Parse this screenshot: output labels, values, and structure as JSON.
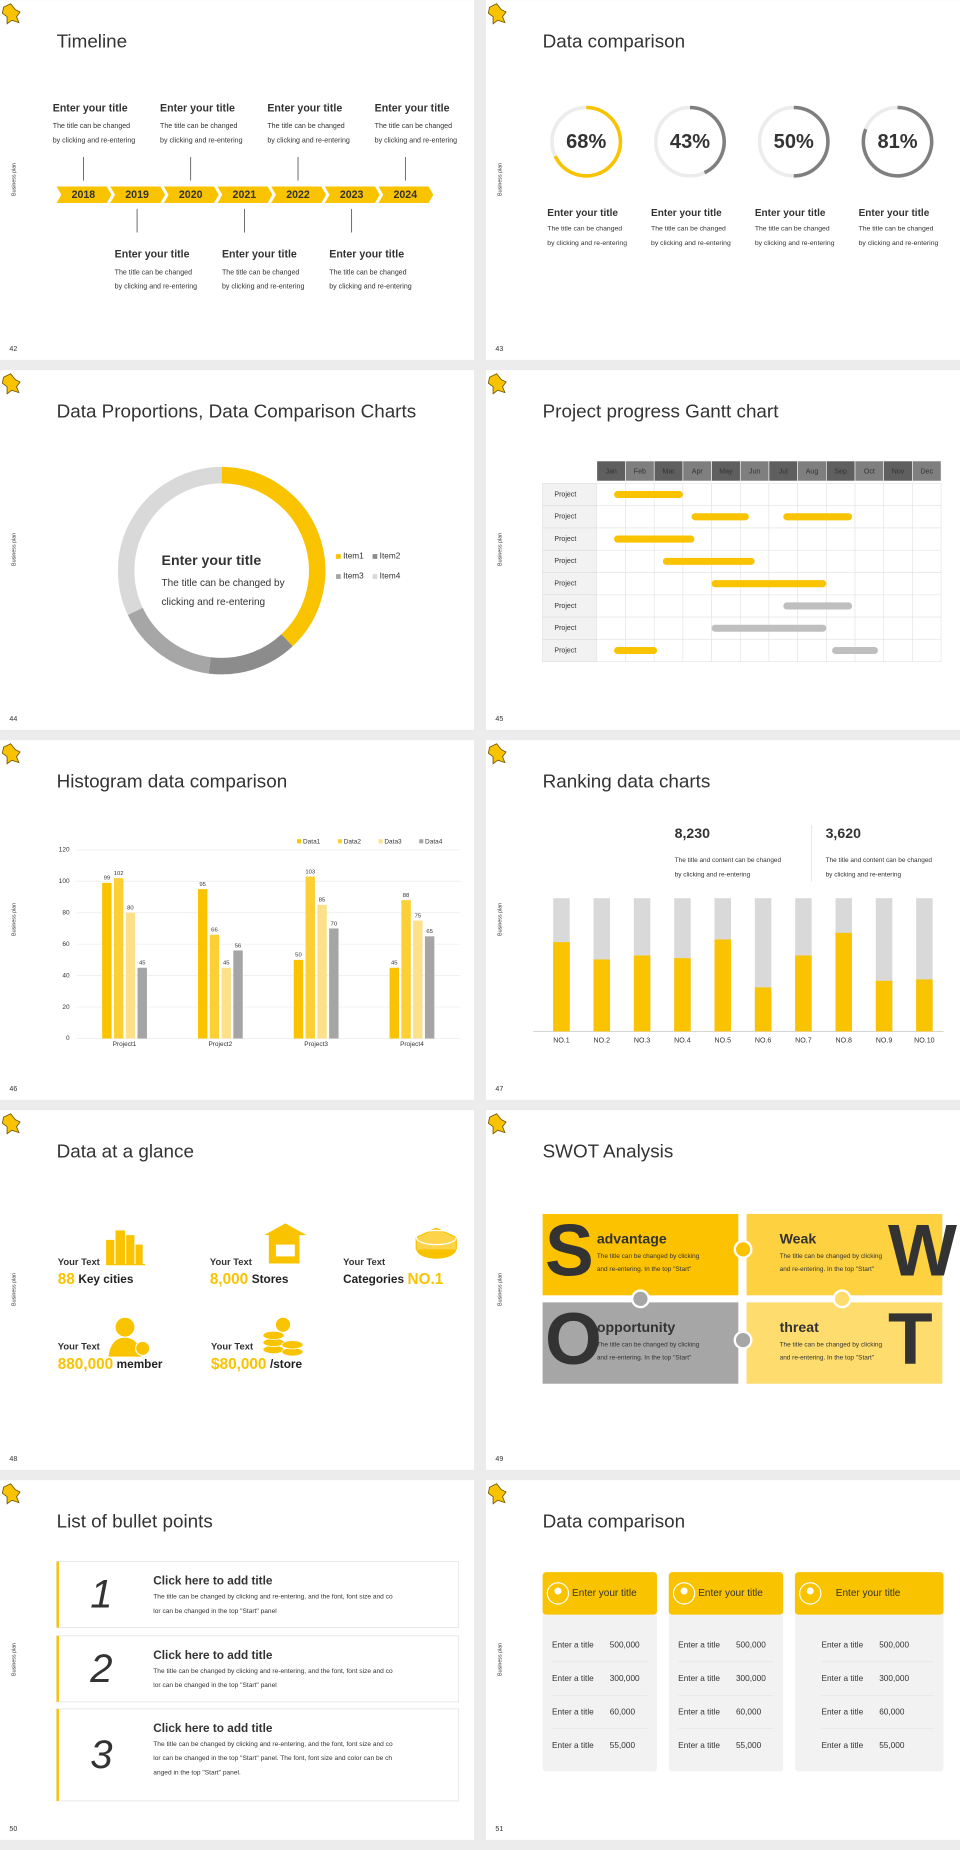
{
  "slides": [
    {
      "number": "42",
      "side_label": "Business plan",
      "title": "Timeline",
      "years": [
        {
          "year": "2018",
          "title": "Enter your title",
          "desc": [
            "The title can be changed",
            "by clicking and re-entering"
          ]
        },
        {
          "year": "2019",
          "title": "Enter your title",
          "desc": [
            "The title can be changed",
            "by clicking and re-entering"
          ]
        },
        {
          "year": "2020",
          "title": "Enter your title",
          "desc": [
            "The title can be changed",
            "by clicking and re-entering"
          ]
        },
        {
          "year": "2021",
          "title": "Enter your title",
          "desc": [
            "The title can be changed",
            "by clicking and re-entering"
          ]
        },
        {
          "year": "2022",
          "title": "Enter your title",
          "desc": [
            "The title can be changed",
            "by clicking and re-entering"
          ]
        },
        {
          "year": "2023",
          "title": "Enter your title",
          "desc": [
            "The title can be changed",
            "by clicking and re-entering"
          ]
        },
        {
          "year": "2024",
          "title": "Enter your title",
          "desc": [
            "The title can be changed",
            "by clicking and re-entering"
          ]
        }
      ]
    },
    {
      "number": "43",
      "side_label": "Business plan",
      "title": "Data comparison",
      "items": [
        {
          "value": 68,
          "value_label": "68%",
          "color": "#f9c300",
          "title": "Enter your title",
          "desc": [
            "The title can be changed",
            "by clicking and re-entering"
          ]
        },
        {
          "value": 43,
          "value_label": "43%",
          "color": "#7f7f7f",
          "title": "Enter your title",
          "desc": [
            "The title can be changed",
            "by clicking and re-entering"
          ]
        },
        {
          "value": 50,
          "value_label": "50%",
          "color": "#7f7f7f",
          "title": "Enter your title",
          "desc": [
            "The title can be changed",
            "by clicking and re-entering"
          ]
        },
        {
          "value": 81,
          "value_label": "81%",
          "color": "#7f7f7f",
          "title": "Enter your title",
          "desc": [
            "The title can be changed",
            "by clicking and re-entering"
          ]
        }
      ]
    },
    {
      "number": "44",
      "side_label": "Business plan",
      "title": "Data Proportions, Data Comparison Charts",
      "chart": {
        "type": "donut",
        "center_title": "Enter your title",
        "center_desc": [
          "The title can be changed by",
          "clicking and re-entering"
        ],
        "categories": [
          "Item1",
          "Item2",
          "Item3",
          "Item4"
        ],
        "values": [
          38,
          14,
          16,
          32
        ],
        "colors": [
          "#f9c300",
          "#8c8c8c",
          "#a6a6a6",
          "#d9d9d9"
        ]
      }
    },
    {
      "number": "45",
      "side_label": "Business plan",
      "title": "Project progress Gantt chart",
      "months": [
        "Jan",
        "Feb",
        "Mar",
        "Apr",
        "May",
        "Jun",
        "Jul",
        "Aug",
        "Sep",
        "Oct",
        "Nov",
        "Dec"
      ],
      "rows": [
        {
          "label": "Project",
          "bars": [
            {
              "start": 0.6,
              "end": 3,
              "color": "#f9c300"
            }
          ]
        },
        {
          "label": "Project",
          "bars": [
            {
              "start": 3.3,
              "end": 5.3,
              "color": "#f9c300"
            },
            {
              "start": 6.5,
              "end": 8.9,
              "color": "#f9c300"
            }
          ]
        },
        {
          "label": "Project",
          "bars": [
            {
              "start": 0.6,
              "end": 3.4,
              "color": "#f9c300"
            }
          ]
        },
        {
          "label": "Project",
          "bars": [
            {
              "start": 2.3,
              "end": 5.5,
              "color": "#f9c300"
            }
          ]
        },
        {
          "label": "Project",
          "bars": [
            {
              "start": 4,
              "end": 8,
              "color": "#f9c300"
            }
          ]
        },
        {
          "label": "Project",
          "bars": [
            {
              "start": 6.5,
              "end": 8.9,
              "color": "#bfbfbf"
            }
          ]
        },
        {
          "label": "Project",
          "bars": [
            {
              "start": 4,
              "end": 8,
              "color": "#bfbfbf"
            }
          ]
        },
        {
          "label": "Project",
          "bars": [
            {
              "start": 0.6,
              "end": 2.1,
              "color": "#f9c300"
            },
            {
              "start": 8.2,
              "end": 9.8,
              "color": "#bfbfbf"
            }
          ]
        }
      ]
    },
    {
      "number": "46",
      "side_label": "Business plan",
      "title": "Histogram data comparison",
      "chart": {
        "type": "bar",
        "categories": [
          "Project1",
          "Project2",
          "Project3",
          "Project4"
        ],
        "series": [
          {
            "name": "Data1",
            "color": "#f9c300",
            "values": [
              99,
              95,
              50,
              45
            ]
          },
          {
            "name": "Data2",
            "color": "#fcd034",
            "values": [
              102,
              66,
              103,
              88
            ]
          },
          {
            "name": "Data3",
            "color": "#fde18a",
            "values": [
              80,
              45,
              85,
              75
            ]
          },
          {
            "name": "Data4",
            "color": "#a5a5a5",
            "values": [
              45,
              56,
              70,
              65
            ]
          }
        ],
        "ylim": [
          0,
          120
        ],
        "yticks": [
          0,
          20,
          40,
          60,
          80,
          100,
          120
        ],
        "grid": true
      }
    },
    {
      "number": "47",
      "side_label": "Business plan",
      "title": "Ranking data charts",
      "highlights": [
        {
          "value": "8,230",
          "color": "#f9c300",
          "desc": [
            "The title and content can be changed",
            "by clicking and re-entering"
          ]
        },
        {
          "value": "3,620",
          "color": "#a6a6a6",
          "desc": [
            "The title and content can be changed",
            "by clicking and re-entering"
          ]
        }
      ],
      "chart": {
        "type": "bar",
        "categories": [
          "NO.1",
          "NO.2",
          "NO.3",
          "NO.4",
          "NO.5",
          "NO.6",
          "NO.7",
          "NO.8",
          "NO.9",
          "NO.10"
        ],
        "values": [
          67,
          54,
          57,
          55,
          69,
          33,
          57,
          74,
          38,
          39
        ],
        "ylim": [
          0,
          100
        ],
        "color": "#f9c300",
        "track_color": "#d9d9d9"
      }
    },
    {
      "number": "48",
      "side_label": "Business plan",
      "title": "Data at a glance",
      "items": [
        {
          "label": "Your Text",
          "parts": [
            "88",
            "Key cities"
          ],
          "highlight": 0
        },
        {
          "label": "Your Text",
          "parts": [
            "8,000",
            "Stores"
          ],
          "highlight": 0
        },
        {
          "label": "Your Text",
          "parts": [
            "Categories",
            "NO.1"
          ],
          "highlight": 1
        },
        {
          "label": "Your Text",
          "parts": [
            "880,000",
            "member"
          ],
          "highlight": 0
        },
        {
          "label": "Your Text",
          "parts": [
            "$80,000",
            "/store"
          ],
          "highlight": 0
        }
      ]
    },
    {
      "number": "49",
      "side_label": "Business plan",
      "title": "SWOT Analysis",
      "quadrants": [
        {
          "letter": "S",
          "title": "advantage",
          "color": "#fcc200",
          "desc": [
            "The title can be changed by clicking",
            "and re-entering. In the top \"Start\""
          ]
        },
        {
          "letter": "W",
          "title": "Weak",
          "color": "#fdd140",
          "desc": [
            "The title can be changed by clicking",
            "and re-entering. In the top \"Start\""
          ]
        },
        {
          "letter": "O",
          "title": "opportunity",
          "color": "#a6a6a6",
          "desc": [
            "The title can be changed by clicking",
            "and re-entering. In the top \"Start\""
          ]
        },
        {
          "letter": "T",
          "title": "threat",
          "color": "#fedd6e",
          "desc": [
            "The title can be changed by clicking",
            "and re-entering. In the top \"Start\""
          ]
        }
      ]
    },
    {
      "number": "50",
      "side_label": "Business plan",
      "title": "List of bullet points",
      "items": [
        {
          "numeral": "1",
          "title": "Click here to add title",
          "desc": [
            "The title can be changed by clicking and re-entering, and the font, font size and co",
            "lor can be changed in the top \"Start\" panel"
          ]
        },
        {
          "numeral": "2",
          "title": "Click here to add title",
          "desc": [
            "The title can be changed by clicking and re-entering, and the font, font size and co",
            "lor can be changed in the top \"Start\" panel"
          ]
        },
        {
          "numeral": "3",
          "title": "Click here to add title",
          "desc": [
            "The title can be changed by clicking and re-entering, and the font, font size and co",
            "lor can be changed in the top \"Start\" panel. The font, font size and color can be ch",
            "anged in the top \"Start\" panel."
          ]
        }
      ]
    },
    {
      "number": "51",
      "side_label": "Business plan",
      "title": "Data comparison",
      "cards": [
        {
          "title": "Enter your title",
          "rows": [
            {
              "label": "Enter a title",
              "value": "500,000"
            },
            {
              "label": "Enter a title",
              "value": "300,000"
            },
            {
              "label": "Enter a title",
              "value": "60,000"
            },
            {
              "label": "Enter a title",
              "value": "55,000"
            }
          ]
        },
        {
          "title": "Enter your title",
          "rows": [
            {
              "label": "Enter a title",
              "value": "500,000"
            },
            {
              "label": "Enter a title",
              "value": "300,000"
            },
            {
              "label": "Enter a title",
              "value": "60,000"
            },
            {
              "label": "Enter a title",
              "value": "55,000"
            }
          ]
        },
        {
          "title": "Enter your title",
          "rows": [
            {
              "label": "Enter a title",
              "value": "500,000"
            },
            {
              "label": "Enter a title",
              "value": "300,000"
            },
            {
              "label": "Enter a title",
              "value": "60,000"
            },
            {
              "label": "Enter a title",
              "value": "55,000"
            }
          ]
        }
      ]
    }
  ]
}
